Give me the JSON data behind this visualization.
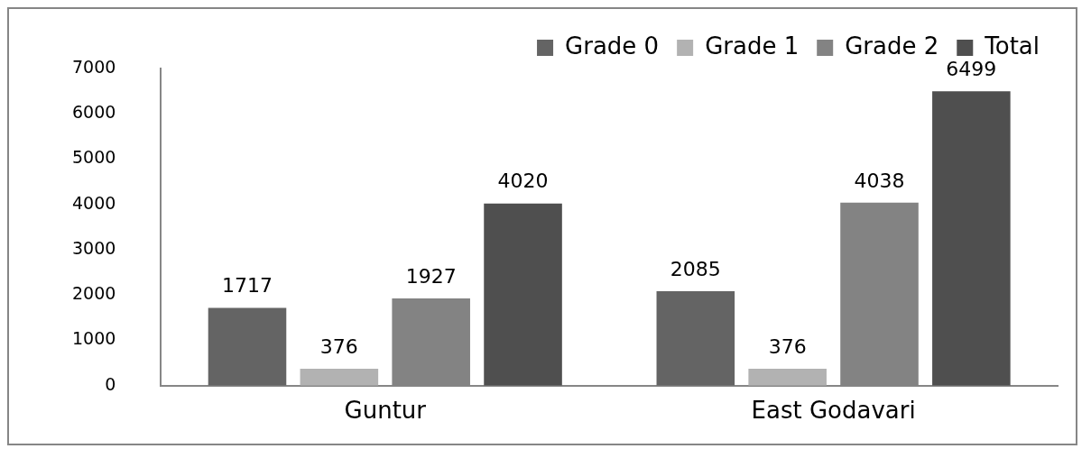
{
  "chart_data": {
    "type": "bar",
    "categories": [
      "Guntur",
      "East Godavari"
    ],
    "series": [
      {
        "name": "Grade 0",
        "color": "#646464",
        "values": [
          1717,
          2085
        ]
      },
      {
        "name": "Grade 1",
        "color": "#b2b2b2",
        "values": [
          376,
          376
        ]
      },
      {
        "name": "Grade 2",
        "color": "#838383",
        "values": [
          1927,
          4038
        ]
      },
      {
        "name": "Total",
        "color": "#4f4f4f",
        "values": [
          4020,
          6499
        ]
      }
    ],
    "ylim": [
      0,
      7000
    ],
    "yticks": [
      0,
      1000,
      2000,
      3000,
      4000,
      5000,
      6000,
      7000
    ],
    "grid": false,
    "legend": "top right",
    "data_labels": true
  }
}
